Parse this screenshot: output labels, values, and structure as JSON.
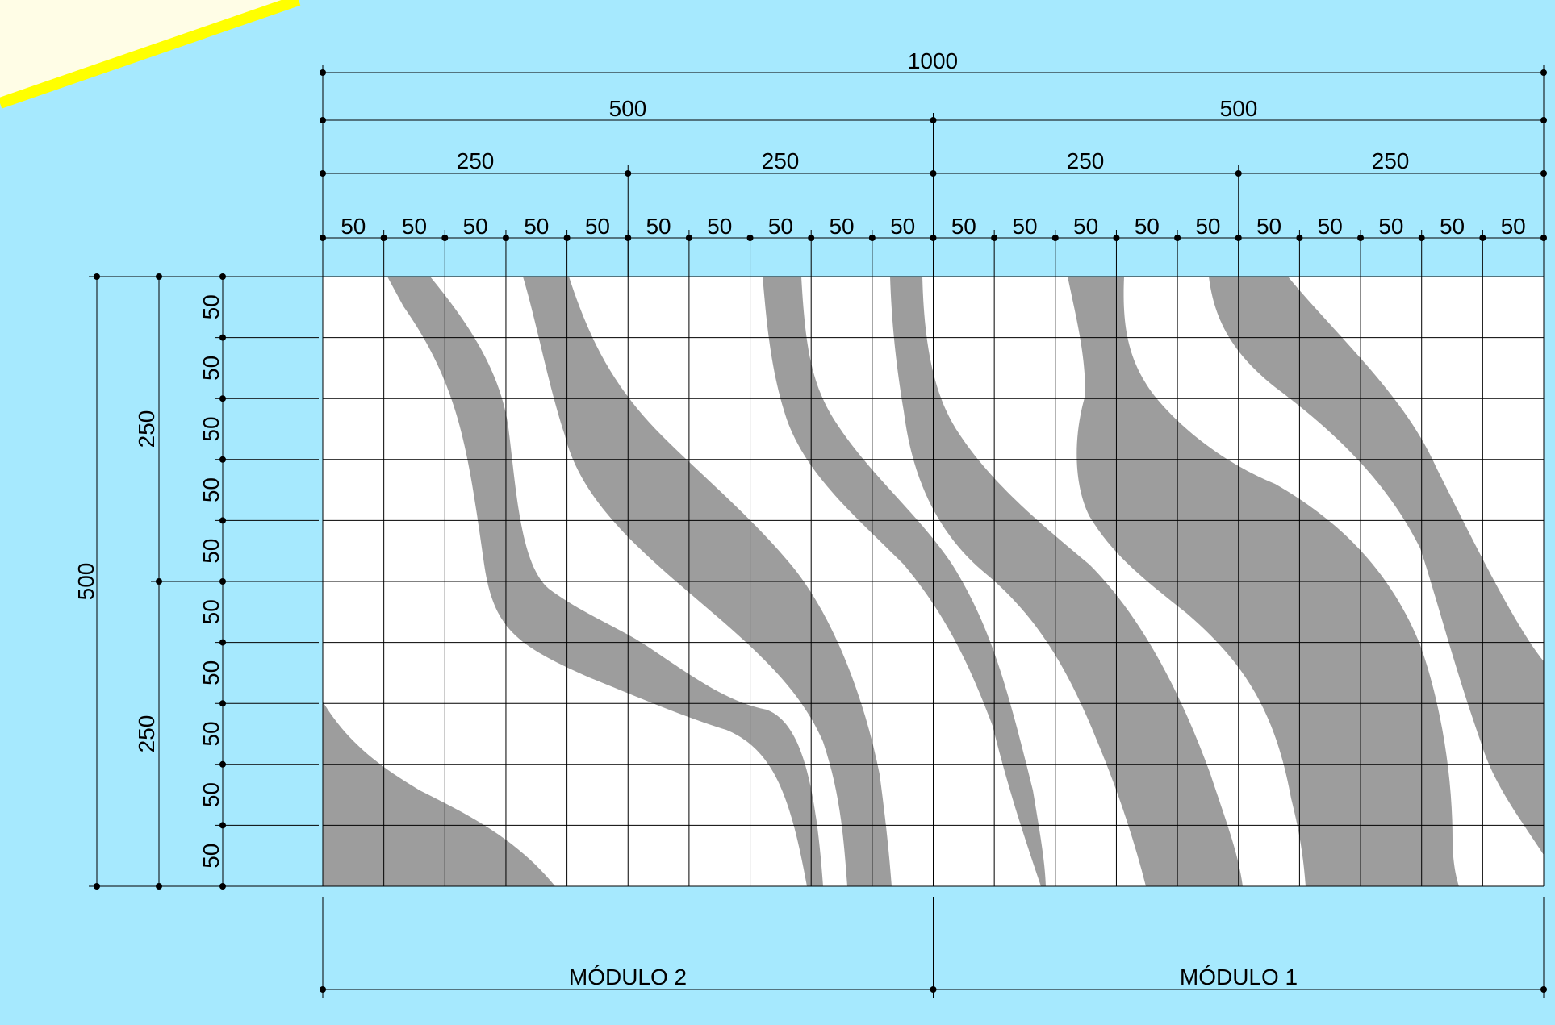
{
  "background_color": "#a6e9fe",
  "panel_color": "#ffffff",
  "stripe_color": "#9d9d9d",
  "accent_color": "#ffff00",
  "corner_color": "#fffde6",
  "dimensions": {
    "total_width": "1000",
    "halves": [
      "500",
      "500"
    ],
    "quarters": [
      "250",
      "250",
      "250",
      "250"
    ],
    "cells": [
      "50",
      "50",
      "50",
      "50",
      "50",
      "50",
      "50",
      "50",
      "50",
      "50",
      "50",
      "50",
      "50",
      "50",
      "50",
      "50",
      "50",
      "50",
      "50",
      "50"
    ],
    "total_height": "500",
    "height_halves": [
      "250",
      "250"
    ],
    "row_cells": [
      "50",
      "50",
      "50",
      "50",
      "50",
      "50",
      "50",
      "50",
      "50",
      "50"
    ]
  },
  "modules": [
    "MÓDULO 2",
    "MÓDULO 1"
  ]
}
